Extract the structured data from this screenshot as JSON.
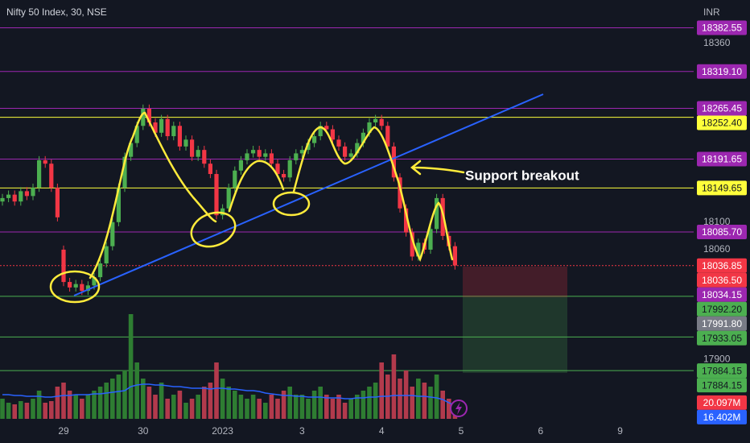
{
  "chart_data": {
    "type": "candlestick",
    "title": "Nifty 50 Index, 30, NSE",
    "currency": "INR",
    "annotation": "Support breakout",
    "up_color": "#4caf50",
    "down_color": "#f23645",
    "volume_up_color": "#2e7d32",
    "volume_down_color": "#b23a4c",
    "volume_ma_color": "#2962ff",
    "ylim": [
      17814,
      18423
    ],
    "yticks": [
      18360,
      18100,
      18060,
      17900
    ],
    "grid": false,
    "categories": [
      null,
      null,
      null,
      null,
      null,
      null,
      null,
      null,
      null,
      null,
      "29",
      null,
      null,
      null,
      null,
      null,
      null,
      null,
      null,
      null,
      null,
      null,
      null,
      "30",
      null,
      null,
      null,
      null,
      null,
      null,
      null,
      null,
      null,
      null,
      null,
      null,
      "2023",
      null,
      null,
      null,
      null,
      null,
      null,
      null,
      null,
      null,
      null,
      null,
      null,
      "3",
      null,
      null,
      null,
      null,
      null,
      null,
      null,
      null,
      null,
      null,
      null,
      null,
      "4",
      null,
      null,
      null,
      null,
      null,
      null,
      null,
      null,
      null,
      null,
      null,
      null,
      "5",
      null,
      null,
      null,
      null,
      null,
      null,
      null,
      null,
      null,
      null,
      null,
      null,
      "6",
      null,
      null,
      null,
      null,
      null,
      null,
      null,
      null,
      null,
      null,
      null,
      null,
      "9",
      null,
      null,
      null
    ],
    "open": [
      18130,
      18135,
      18140,
      18130,
      18145,
      18138,
      18150,
      18190,
      18185,
      18150,
      18060,
      18013,
      18005,
      18010,
      18000,
      18008,
      18020,
      18040,
      18065,
      18100,
      18150,
      18195,
      18215,
      18240,
      18265,
      18245,
      18230,
      18250,
      18225,
      18240,
      18210,
      18220,
      18195,
      18205,
      18185,
      18170,
      18110,
      18120,
      18150,
      18175,
      18190,
      18200,
      18205,
      18195,
      18200,
      18185,
      18170,
      18165,
      18190,
      18200,
      18205,
      18215,
      18225,
      18240,
      18235,
      18220,
      18210,
      18195,
      18200,
      18215,
      18230,
      18245,
      18250,
      18240,
      18210,
      18165,
      18120,
      18085,
      18050,
      18070,
      18060,
      18090,
      18135,
      18080,
      18065,
      null,
      null,
      null,
      null,
      null,
      null,
      null,
      null,
      null,
      null,
      null,
      null,
      null,
      null,
      null,
      null,
      null,
      null,
      null,
      null,
      null,
      null,
      null,
      null,
      null,
      null,
      null,
      null,
      null,
      null
    ],
    "high": [
      18141,
      18146,
      18146,
      18151,
      18151,
      18156,
      18196,
      18196,
      18191,
      18156,
      18066,
      18019,
      18016,
      18016,
      18014,
      18026,
      18046,
      18071,
      18106,
      18156,
      18201,
      18221,
      18246,
      18271,
      18271,
      18251,
      18256,
      18256,
      18246,
      18246,
      18226,
      18226,
      18211,
      18211,
      18191,
      18176,
      18126,
      18156,
      18181,
      18196,
      18206,
      18211,
      18211,
      18206,
      18206,
      18191,
      18176,
      18196,
      18206,
      18211,
      18221,
      18231,
      18246,
      18246,
      18241,
      18226,
      18216,
      18206,
      18221,
      18236,
      18251,
      18256,
      18256,
      18246,
      18216,
      18171,
      18126,
      18091,
      18076,
      18076,
      18096,
      18141,
      18141,
      18086,
      18071,
      null,
      null,
      null,
      null,
      null,
      null,
      null,
      null,
      null,
      null,
      null,
      null,
      null,
      null,
      null,
      null,
      null,
      null,
      null,
      null,
      null,
      null,
      null,
      null,
      null,
      null,
      null,
      null,
      null,
      null
    ],
    "low": [
      18124,
      18129,
      18124,
      18124,
      18132,
      18132,
      18144,
      18179,
      18144,
      18101,
      18007,
      17999,
      17999,
      17994,
      17994,
      18002,
      18014,
      18034,
      18059,
      18094,
      18144,
      18189,
      18209,
      18234,
      18239,
      18224,
      18224,
      18219,
      18219,
      18204,
      18204,
      18189,
      18189,
      18179,
      18164,
      18104,
      18104,
      18114,
      18144,
      18169,
      18184,
      18194,
      18189,
      18189,
      18179,
      18164,
      18159,
      18159,
      18184,
      18194,
      18199,
      18209,
      18219,
      18229,
      18214,
      18204,
      18189,
      18189,
      18194,
      18209,
      18224,
      18239,
      18234,
      18204,
      18159,
      18114,
      18079,
      18044,
      18044,
      18054,
      18054,
      18084,
      18074,
      18059,
      18031,
      null,
      null,
      null,
      null,
      null,
      null,
      null,
      null,
      null,
      null,
      null,
      null,
      null,
      null,
      null,
      null,
      null,
      null,
      null,
      null,
      null,
      null,
      null,
      null,
      null,
      null,
      null,
      null,
      null,
      null
    ],
    "close": [
      18135,
      18140,
      18130,
      18145,
      18138,
      18150,
      18190,
      18185,
      18150,
      18107,
      18013,
      18005,
      18010,
      18000,
      18008,
      18020,
      18040,
      18065,
      18100,
      18150,
      18195,
      18215,
      18240,
      18265,
      18245,
      18230,
      18250,
      18225,
      18240,
      18210,
      18220,
      18195,
      18205,
      18185,
      18170,
      18110,
      18120,
      18150,
      18175,
      18190,
      18200,
      18205,
      18195,
      18200,
      18185,
      18170,
      18165,
      18190,
      18200,
      18205,
      18215,
      18225,
      18240,
      18235,
      18220,
      18210,
      18195,
      18200,
      18215,
      18230,
      18245,
      18250,
      18240,
      18210,
      18165,
      18120,
      18085,
      18050,
      18070,
      18060,
      18090,
      18135,
      18080,
      18065,
      18037,
      null,
      null,
      null,
      null,
      null,
      null,
      null,
      null,
      null,
      null,
      null,
      null,
      null,
      null,
      null,
      null,
      null,
      null,
      null,
      null,
      null,
      null,
      null,
      null,
      null,
      null,
      null,
      null,
      null,
      null
    ],
    "volume": [
      25,
      20,
      18,
      22,
      20,
      25,
      35,
      20,
      22,
      40,
      45,
      35,
      30,
      25,
      30,
      35,
      40,
      45,
      50,
      55,
      60,
      130,
      70,
      50,
      40,
      30,
      45,
      25,
      30,
      35,
      20,
      25,
      30,
      40,
      45,
      70,
      50,
      40,
      35,
      30,
      25,
      30,
      25,
      20,
      30,
      25,
      35,
      40,
      30,
      30,
      25,
      35,
      40,
      30,
      25,
      30,
      20,
      25,
      30,
      35,
      40,
      45,
      70,
      55,
      80,
      50,
      60,
      40,
      50,
      45,
      40,
      55,
      35,
      25,
      20.097,
      null,
      null,
      null,
      null,
      null,
      null,
      null,
      null,
      null,
      null,
      null,
      null,
      null,
      null,
      null,
      null,
      null,
      null,
      null,
      null,
      null,
      null,
      null,
      null,
      null,
      null,
      null,
      null,
      null,
      null
    ],
    "volume_ma": [
      30,
      30,
      29,
      29,
      28,
      28,
      28,
      27,
      27,
      28,
      29,
      29,
      30,
      30,
      30,
      31,
      31,
      32,
      33,
      34,
      35,
      40,
      42,
      43,
      43,
      42,
      42,
      41,
      40,
      40,
      39,
      38,
      38,
      38,
      37,
      38,
      38,
      37,
      37,
      36,
      35,
      35,
      34,
      32,
      31,
      30,
      29,
      29,
      28,
      28,
      27,
      27,
      27,
      26,
      26,
      26,
      25,
      25,
      26,
      26,
      27,
      27,
      28,
      28,
      29,
      29,
      29,
      29,
      28,
      28,
      27,
      26,
      24,
      20,
      16.402,
      null,
      null,
      null,
      null,
      null,
      null,
      null,
      null,
      null,
      null,
      null,
      null,
      null,
      null,
      null,
      null,
      null,
      null,
      null,
      null,
      null,
      null,
      null,
      null,
      null,
      null,
      null,
      null,
      null,
      null
    ],
    "price_labels": [
      {
        "value": 18382.55,
        "label": "18382.55",
        "color": "#9c27b0",
        "text_color": "#ffffff",
        "line_style": "solid"
      },
      {
        "value": 18319.1,
        "label": "18319.10",
        "color": "#9c27b0",
        "text_color": "#ffffff",
        "line_style": "solid"
      },
      {
        "value": 18265.45,
        "label": "18265.45",
        "color": "#9c27b0",
        "text_color": "#ffffff",
        "line_style": "solid"
      },
      {
        "value": 18252.4,
        "label": "18252.40",
        "color": "#ffff3b",
        "text_color": "#131722",
        "line_style": "solid"
      },
      {
        "value": 18191.65,
        "label": "18191.65",
        "color": "#9c27b0",
        "text_color": "#ffffff",
        "line_style": "solid"
      },
      {
        "value": 18149.65,
        "label": "18149.65",
        "color": "#ffff3b",
        "text_color": "#131722",
        "line_style": "solid"
      },
      {
        "value": 18085.7,
        "label": "18085.70",
        "color": "#9c27b0",
        "text_color": "#ffffff",
        "line_style": "solid"
      },
      {
        "value": 18036.85,
        "label": "18036.85",
        "color": "#f23645",
        "text_color": "#ffffff",
        "line_style": "dotted"
      },
      {
        "value": 18036.5,
        "label": "18036.50",
        "color": "#f23645",
        "text_color": "#ffffff"
      },
      {
        "value": 18034.15,
        "label": "18034.15",
        "color": "#9c27b0",
        "text_color": "#ffffff"
      },
      {
        "value": 17992.2,
        "label": "17992.20",
        "color": "#4caf50",
        "text_color": "#131722",
        "line_style": "solid"
      },
      {
        "value": 17991.8,
        "label": "17991.80",
        "color": "#787b86",
        "text_color": "#ffffff"
      },
      {
        "value": 17933.05,
        "label": "17933.05",
        "color": "#4caf50",
        "text_color": "#131722",
        "line_style": "solid"
      },
      {
        "value": 17884.15,
        "label": "17884.15",
        "color": "#4caf50",
        "text_color": "#131722",
        "line_style": "solid"
      },
      {
        "value": 17884.15,
        "label": "17884.15",
        "color": "#4caf50",
        "text_color": "#131722"
      },
      {
        "value": 20.097,
        "label": "20.097M",
        "color": "#f23645",
        "text_color": "#ffffff",
        "scale": "volume"
      },
      {
        "value": 16.402,
        "label": "16.402M",
        "color": "#2962ff",
        "text_color": "#ffffff",
        "scale": "volume"
      }
    ]
  }
}
